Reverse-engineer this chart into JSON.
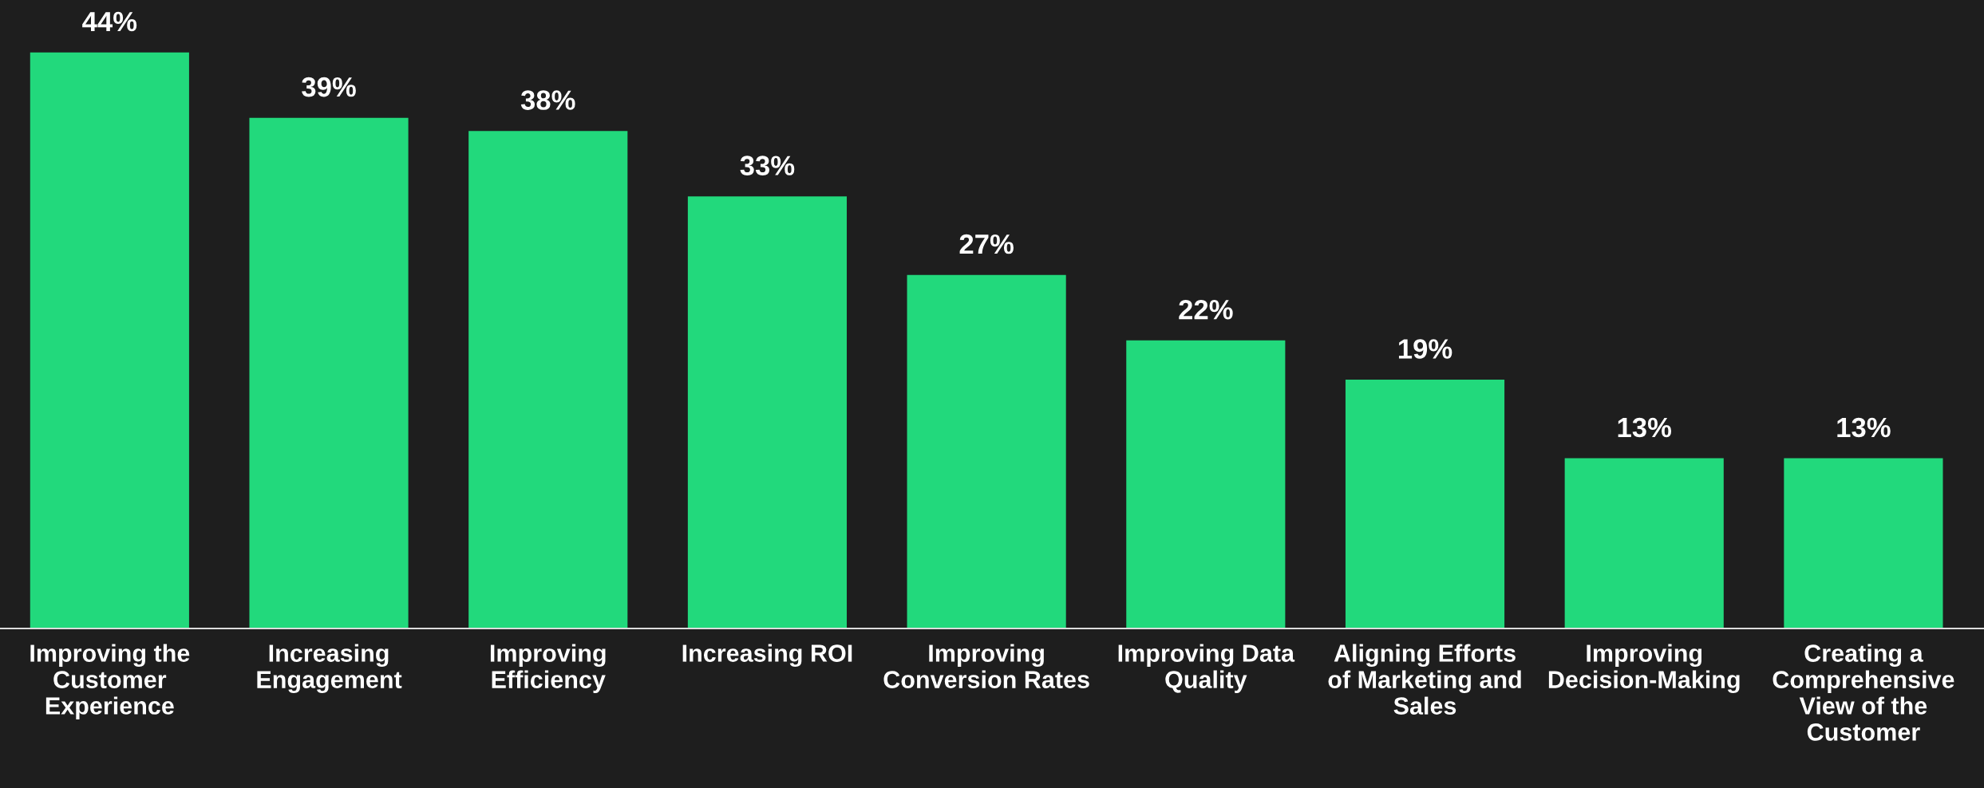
{
  "chart_data": {
    "type": "bar",
    "categories": [
      "Improving the Customer Experience",
      "Increasing Engagement",
      "Improving Efficiency",
      "Increasing ROI",
      "Improving Conversion Rates",
      "Improving Data Quality",
      "Aligning Efforts of Marketing and Sales",
      "Improving Decision-Making",
      "Creating a Comprehensive View of the Customer"
    ],
    "values": [
      44,
      39,
      38,
      33,
      27,
      22,
      19,
      13,
      13
    ],
    "value_labels": [
      "44%",
      "39%",
      "38%",
      "33%",
      "27%",
      "22%",
      "19%",
      "13%",
      "13%"
    ],
    "color": "#22d97c",
    "ylim": [
      0,
      48
    ],
    "grid": false,
    "legend": false
  }
}
